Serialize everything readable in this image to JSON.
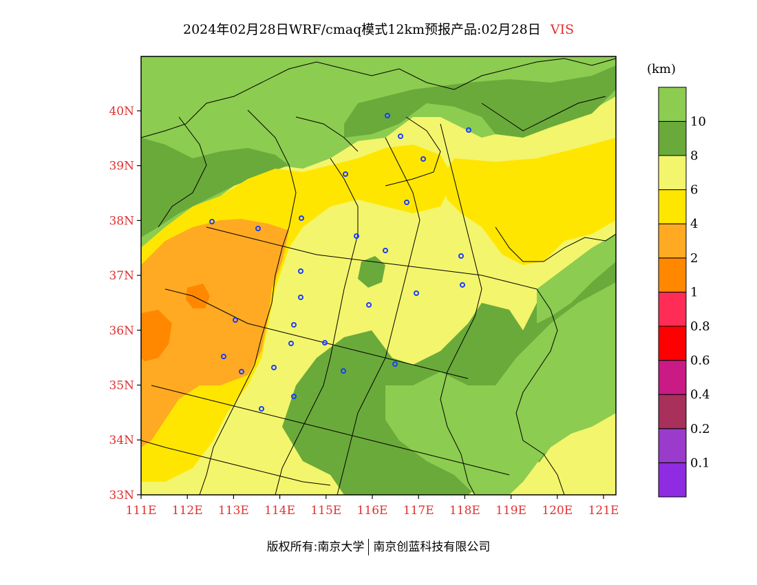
{
  "title": {
    "text": "2024年02月28日WRF/cmaq模式12km预报产品:02月28日",
    "variable": "VIS"
  },
  "colorbar": {
    "unit": "(km)",
    "levels": [
      {
        "color": "#8f2be0",
        "label": "0.1"
      },
      {
        "color": "#9a3bcc",
        "label": "0.2"
      },
      {
        "color": "#a8305a",
        "label": "0.4"
      },
      {
        "color": "#c91a86",
        "label": "0.6"
      },
      {
        "color": "#ff0000",
        "label": "0.8"
      },
      {
        "color": "#ff2d55",
        "label": "1"
      },
      {
        "color": "#ff8800",
        "label": "2"
      },
      {
        "color": "#ffaa22",
        "label": "4"
      },
      {
        "color": "#ffe600",
        "label": "6"
      },
      {
        "color": "#f3f56c",
        "label": "8"
      },
      {
        "color": "#6aaa3a",
        "label": "10"
      },
      {
        "color": "#8ccc50",
        "label": ""
      }
    ]
  },
  "axes": {
    "lat_labels": [
      "40N",
      "39N",
      "38N",
      "37N",
      "36N",
      "35N",
      "34N",
      "33N"
    ],
    "lon_labels": [
      "111E",
      "112E",
      "113E",
      "114E",
      "115E",
      "116E",
      "117E",
      "118E",
      "119E",
      "120E",
      "121E"
    ]
  },
  "footer": {
    "left": "版权所有:南京大学",
    "right": "南京创蓝科技有限公司"
  }
}
